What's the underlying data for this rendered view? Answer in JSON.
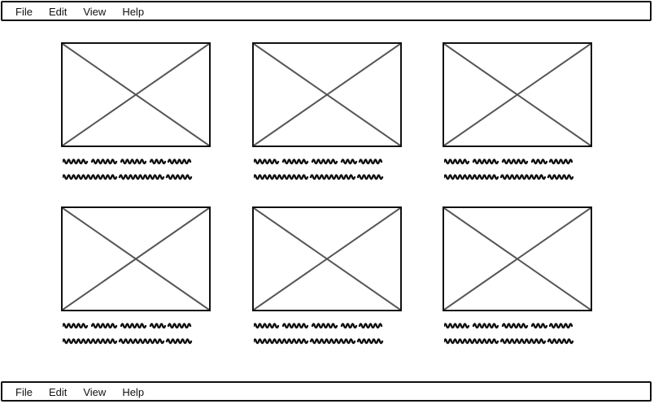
{
  "menu": {
    "top": [
      "File",
      "Edit",
      "View",
      "Help"
    ],
    "bottom": [
      "File",
      "Edit",
      "View",
      "Help"
    ]
  },
  "cards": [
    {
      "caption_lines": 2
    },
    {
      "caption_lines": 2
    },
    {
      "caption_lines": 2
    },
    {
      "caption_lines": 2
    },
    {
      "caption_lines": 2
    },
    {
      "caption_lines": 2
    }
  ],
  "icons": {
    "image_placeholder": "image-placeholder-icon"
  },
  "colors": {
    "stroke": "#111111",
    "cross": "#555555",
    "background": "#ffffff"
  }
}
